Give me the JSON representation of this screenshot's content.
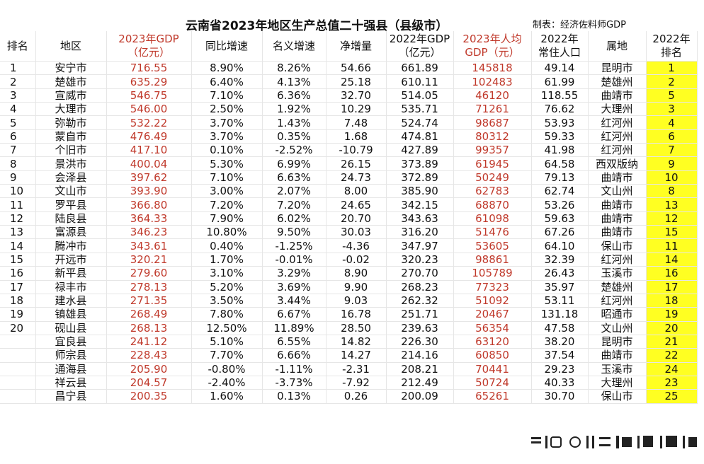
{
  "title": "云南省2023年地区生产总值二十强县（县级市）",
  "credit": "制表：经济佐料师GDP",
  "headers": {
    "rank": [
      "",
      "排名"
    ],
    "region": [
      "",
      "地区"
    ],
    "gdp2023": [
      "2023年GDP",
      "（亿元）"
    ],
    "yoy": [
      "",
      "同比增速"
    ],
    "nominal": [
      "",
      "名义增速"
    ],
    "net": [
      "",
      "净增量"
    ],
    "gdp2022": [
      "2022年GDP",
      "（亿元）"
    ],
    "percap": [
      "2023年人均",
      "GDP（元）"
    ],
    "pop": [
      "2022年",
      "常住人口"
    ],
    "pref": [
      "",
      "属地"
    ],
    "rank2022": [
      "2022年",
      "排名"
    ]
  },
  "colors": {
    "highlight_red": "#c0392b",
    "rank2022_fill": "#ffff22"
  },
  "rows": [
    {
      "rank": "1",
      "region": "安宁市",
      "gdp2023": "716.55",
      "yoy": "8.90%",
      "nominal": "8.26%",
      "net": "54.66",
      "gdp2022": "661.89",
      "percap": "145818",
      "pop": "49.14",
      "pref": "昆明市",
      "rank2022": "1"
    },
    {
      "rank": "2",
      "region": "楚雄市",
      "gdp2023": "635.29",
      "yoy": "6.40%",
      "nominal": "4.13%",
      "net": "25.18",
      "gdp2022": "610.11",
      "percap": "102483",
      "pop": "61.99",
      "pref": "楚雄州",
      "rank2022": "2"
    },
    {
      "rank": "3",
      "region": "宣威市",
      "gdp2023": "546.75",
      "yoy": "7.10%",
      "nominal": "6.36%",
      "net": "32.70",
      "gdp2022": "514.05",
      "percap": "46120",
      "pop": "118.55",
      "pref": "曲靖市",
      "rank2022": "5"
    },
    {
      "rank": "4",
      "region": "大理市",
      "gdp2023": "546.00",
      "yoy": "2.50%",
      "nominal": "1.92%",
      "net": "10.29",
      "gdp2022": "535.71",
      "percap": "71261",
      "pop": "76.62",
      "pref": "大理州",
      "rank2022": "3"
    },
    {
      "rank": "5",
      "region": "弥勒市",
      "gdp2023": "532.22",
      "yoy": "3.70%",
      "nominal": "1.43%",
      "net": "7.48",
      "gdp2022": "524.74",
      "percap": "98687",
      "pop": "53.93",
      "pref": "红河州",
      "rank2022": "4"
    },
    {
      "rank": "6",
      "region": "蒙自市",
      "gdp2023": "476.49",
      "yoy": "3.70%",
      "nominal": "0.35%",
      "net": "1.68",
      "gdp2022": "474.81",
      "percap": "80312",
      "pop": "59.33",
      "pref": "红河州",
      "rank2022": "6"
    },
    {
      "rank": "7",
      "region": "个旧市",
      "gdp2023": "417.10",
      "yoy": "0.10%",
      "nominal": "-2.52%",
      "net": "-10.79",
      "gdp2022": "427.89",
      "percap": "99357",
      "pop": "41.98",
      "pref": "红河州",
      "rank2022": "7"
    },
    {
      "rank": "8",
      "region": "景洪市",
      "gdp2023": "400.04",
      "yoy": "5.30%",
      "nominal": "6.99%",
      "net": "26.15",
      "gdp2022": "373.89",
      "percap": "61945",
      "pop": "64.58",
      "pref": "西双版纳",
      "rank2022": "9"
    },
    {
      "rank": "9",
      "region": "会泽县",
      "gdp2023": "397.62",
      "yoy": "7.10%",
      "nominal": "6.63%",
      "net": "24.73",
      "gdp2022": "372.89",
      "percap": "50249",
      "pop": "79.13",
      "pref": "曲靖市",
      "rank2022": "10"
    },
    {
      "rank": "10",
      "region": "文山市",
      "gdp2023": "393.90",
      "yoy": "3.00%",
      "nominal": "2.07%",
      "net": "8.00",
      "gdp2022": "385.90",
      "percap": "62783",
      "pop": "62.74",
      "pref": "文山州",
      "rank2022": "8"
    },
    {
      "rank": "11",
      "region": "罗平县",
      "gdp2023": "366.80",
      "yoy": "7.20%",
      "nominal": "7.20%",
      "net": "24.65",
      "gdp2022": "342.15",
      "percap": "68870",
      "pop": "53.26",
      "pref": "曲靖市",
      "rank2022": "13"
    },
    {
      "rank": "12",
      "region": "陆良县",
      "gdp2023": "364.33",
      "yoy": "7.90%",
      "nominal": "6.02%",
      "net": "20.70",
      "gdp2022": "343.63",
      "percap": "61098",
      "pop": "59.63",
      "pref": "曲靖市",
      "rank2022": "12"
    },
    {
      "rank": "13",
      "region": "富源县",
      "gdp2023": "346.23",
      "yoy": "10.80%",
      "nominal": "9.50%",
      "net": "30.03",
      "gdp2022": "316.20",
      "percap": "51476",
      "pop": "67.26",
      "pref": "曲靖市",
      "rank2022": "15"
    },
    {
      "rank": "14",
      "region": "腾冲市",
      "gdp2023": "343.61",
      "yoy": "0.40%",
      "nominal": "-1.25%",
      "net": "-4.36",
      "gdp2022": "347.97",
      "percap": "53605",
      "pop": "64.10",
      "pref": "保山市",
      "rank2022": "11"
    },
    {
      "rank": "15",
      "region": "开远市",
      "gdp2023": "320.21",
      "yoy": "1.70%",
      "nominal": "-0.01%",
      "net": "-0.02",
      "gdp2022": "320.23",
      "percap": "98861",
      "pop": "32.39",
      "pref": "红河州",
      "rank2022": "14"
    },
    {
      "rank": "16",
      "region": "新平县",
      "gdp2023": "279.60",
      "yoy": "3.10%",
      "nominal": "3.29%",
      "net": "8.90",
      "gdp2022": "270.70",
      "percap": "105789",
      "pop": "26.43",
      "pref": "玉溪市",
      "rank2022": "16"
    },
    {
      "rank": "17",
      "region": "禄丰市",
      "gdp2023": "278.13",
      "yoy": "5.20%",
      "nominal": "3.69%",
      "net": "9.90",
      "gdp2022": "268.23",
      "percap": "77323",
      "pop": "35.97",
      "pref": "楚雄州",
      "rank2022": "17"
    },
    {
      "rank": "18",
      "region": "建水县",
      "gdp2023": "271.35",
      "yoy": "3.50%",
      "nominal": "3.44%",
      "net": "9.03",
      "gdp2022": "262.32",
      "percap": "51092",
      "pop": "53.11",
      "pref": "红河州",
      "rank2022": "18"
    },
    {
      "rank": "19",
      "region": "镇雄县",
      "gdp2023": "268.49",
      "yoy": "7.80%",
      "nominal": "6.67%",
      "net": "16.78",
      "gdp2022": "251.71",
      "percap": "20467",
      "pop": "131.18",
      "pref": "昭通市",
      "rank2022": "19"
    },
    {
      "rank": "20",
      "region": "砚山县",
      "gdp2023": "268.13",
      "yoy": "12.50%",
      "nominal": "11.89%",
      "net": "28.50",
      "gdp2022": "239.63",
      "percap": "56354",
      "pop": "47.58",
      "pref": "文山州",
      "rank2022": "20"
    },
    {
      "rank": "",
      "region": "宜良县",
      "gdp2023": "241.12",
      "yoy": "5.10%",
      "nominal": "6.55%",
      "net": "14.82",
      "gdp2022": "226.30",
      "percap": "63120",
      "pop": "38.20",
      "pref": "昆明市",
      "rank2022": "21"
    },
    {
      "rank": "",
      "region": "师宗县",
      "gdp2023": "228.43",
      "yoy": "7.70%",
      "nominal": "6.66%",
      "net": "14.27",
      "gdp2022": "214.16",
      "percap": "60850",
      "pop": "37.54",
      "pref": "曲靖市",
      "rank2022": "22"
    },
    {
      "rank": "",
      "region": "通海县",
      "gdp2023": "205.90",
      "yoy": "-0.80%",
      "nominal": "-1.11%",
      "net": "-2.31",
      "gdp2022": "208.21",
      "percap": "70441",
      "pop": "29.23",
      "pref": "玉溪市",
      "rank2022": "24"
    },
    {
      "rank": "",
      "region": "祥云县",
      "gdp2023": "204.57",
      "yoy": "-2.40%",
      "nominal": "-3.73%",
      "net": "-7.92",
      "gdp2022": "212.49",
      "percap": "50724",
      "pop": "40.33",
      "pref": "大理州",
      "rank2022": "23"
    },
    {
      "rank": "",
      "region": "昌宁县",
      "gdp2023": "200.35",
      "yoy": "1.60%",
      "nominal": "0.13%",
      "net": "0.26",
      "gdp2022": "200.09",
      "percap": "65261",
      "pop": "30.70",
      "pref": "保山市",
      "rank2022": "25"
    }
  ]
}
